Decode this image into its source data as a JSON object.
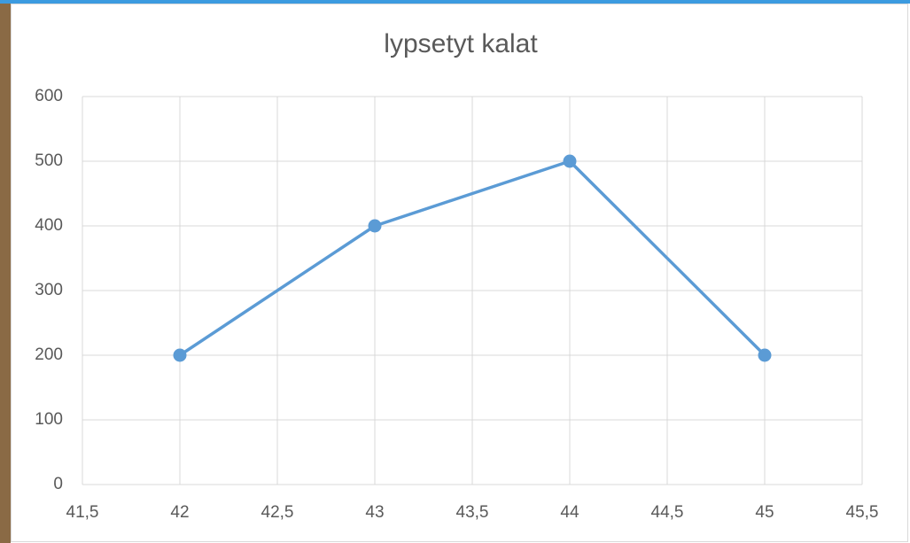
{
  "chart_data": {
    "type": "line",
    "title": "lypsetyt kalat",
    "x": [
      42,
      43,
      44,
      45
    ],
    "series": [
      {
        "color": "#5b9bd5",
        "values": [
          200,
          400,
          500,
          200
        ]
      }
    ],
    "xlim": [
      41.5,
      45.5
    ],
    "xticks": [
      {
        "value": 41.5,
        "label": "41,5"
      },
      42,
      {
        "value": 42.5,
        "label": "42,5"
      },
      43,
      {
        "value": 43.5,
        "label": "43,5"
      },
      44,
      {
        "value": 44.5,
        "label": "44,5"
      },
      45,
      {
        "value": 45.5,
        "label": "45,5"
      }
    ],
    "ylim": [
      0,
      600
    ],
    "yticks": [
      0,
      100,
      200,
      300,
      400,
      500,
      600
    ],
    "grid": true
  }
}
